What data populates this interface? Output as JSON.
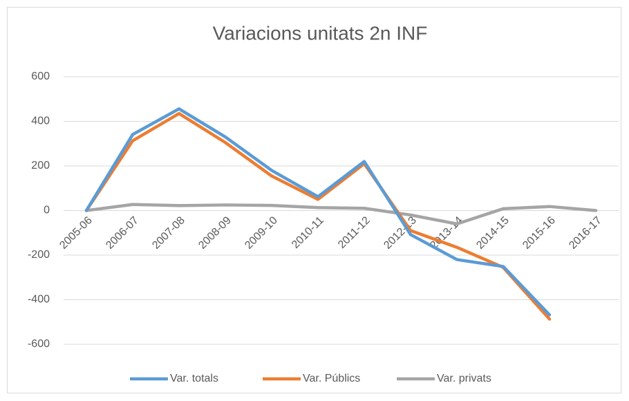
{
  "chart_data": {
    "type": "line",
    "title": "Variacions unitats 2n INF",
    "categories": [
      "2005-06",
      "2006-07",
      "2007-08",
      "2008-09",
      "2009-10",
      "2010-11",
      "2011-12",
      "2012-13",
      "2013-14",
      "2014-15",
      "2015-16",
      "2016-17"
    ],
    "series": [
      {
        "name": "Var. totals",
        "color": "#5b9bd5",
        "values": [
          0,
          341,
          456,
          330,
          180,
          62,
          220,
          -108,
          -220,
          -251,
          -468,
          null
        ]
      },
      {
        "name": "Var. Públics",
        "color": "#ed7d31",
        "values": [
          0,
          313,
          435,
          305,
          155,
          50,
          210,
          -90,
          -165,
          -255,
          -487,
          null
        ]
      },
      {
        "name": "Var. privats",
        "color": "#a5a5a5",
        "values": [
          0,
          27,
          22,
          25,
          23,
          13,
          10,
          -20,
          -60,
          8,
          18,
          0
        ]
      }
    ],
    "ylim": [
      -600,
      600
    ],
    "yticks": [
      -600,
      -400,
      -200,
      0,
      200,
      400,
      600
    ],
    "grid": true,
    "legend": "bottom"
  }
}
